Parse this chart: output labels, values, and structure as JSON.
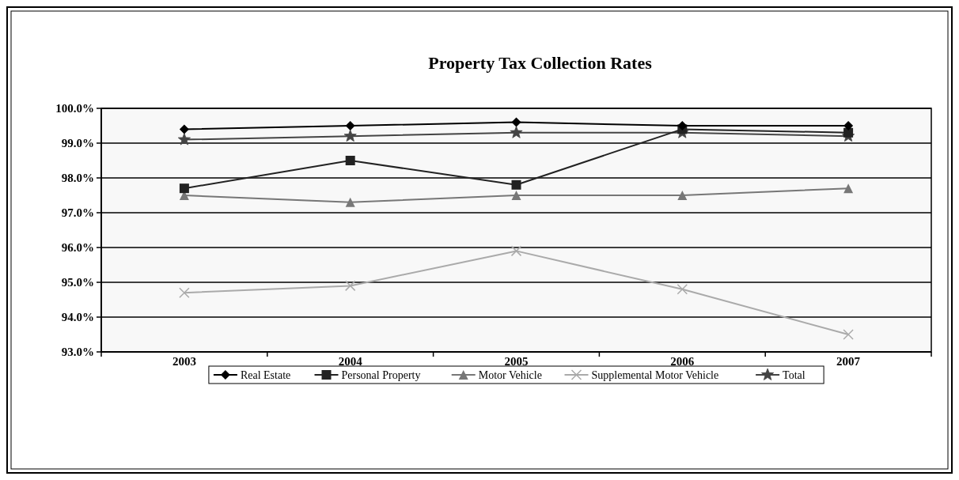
{
  "chart_data": {
    "type": "line",
    "title": "Property Tax Collection Rates",
    "categories": [
      "2003",
      "2004",
      "2005",
      "2006",
      "2007"
    ],
    "series": [
      {
        "name": "Real Estate",
        "color": "#000000",
        "marker": "diamond",
        "values": [
          99.4,
          99.5,
          99.6,
          99.5,
          99.5
        ]
      },
      {
        "name": "Personal Property",
        "color": "#222222",
        "marker": "square",
        "values": [
          97.7,
          98.5,
          97.8,
          99.4,
          99.3
        ]
      },
      {
        "name": "Motor Vehicle",
        "color": "#777777",
        "marker": "triangle",
        "values": [
          97.5,
          97.3,
          97.5,
          97.5,
          97.7
        ]
      },
      {
        "name": "Supplemental Motor Vehicle",
        "color": "#aaaaaa",
        "marker": "cross",
        "values": [
          94.7,
          94.9,
          95.9,
          94.8,
          93.5
        ]
      },
      {
        "name": "Total",
        "color": "#444444",
        "marker": "star",
        "values": [
          99.1,
          99.2,
          99.3,
          99.3,
          99.2
        ]
      }
    ],
    "ylim": [
      93,
      100
    ],
    "yticks": [
      {
        "value": 93,
        "label": "93.0%"
      },
      {
        "value": 94,
        "label": "94.0%"
      },
      {
        "value": 95,
        "label": "95.0%"
      },
      {
        "value": 96,
        "label": "96.0%"
      },
      {
        "value": 97,
        "label": "97.0%"
      },
      {
        "value": 98,
        "label": "98.0%"
      },
      {
        "value": 99,
        "label": "99.0%"
      },
      {
        "value": 100,
        "label": "100.0%"
      }
    ],
    "grid": "y",
    "legend": "bottom"
  }
}
